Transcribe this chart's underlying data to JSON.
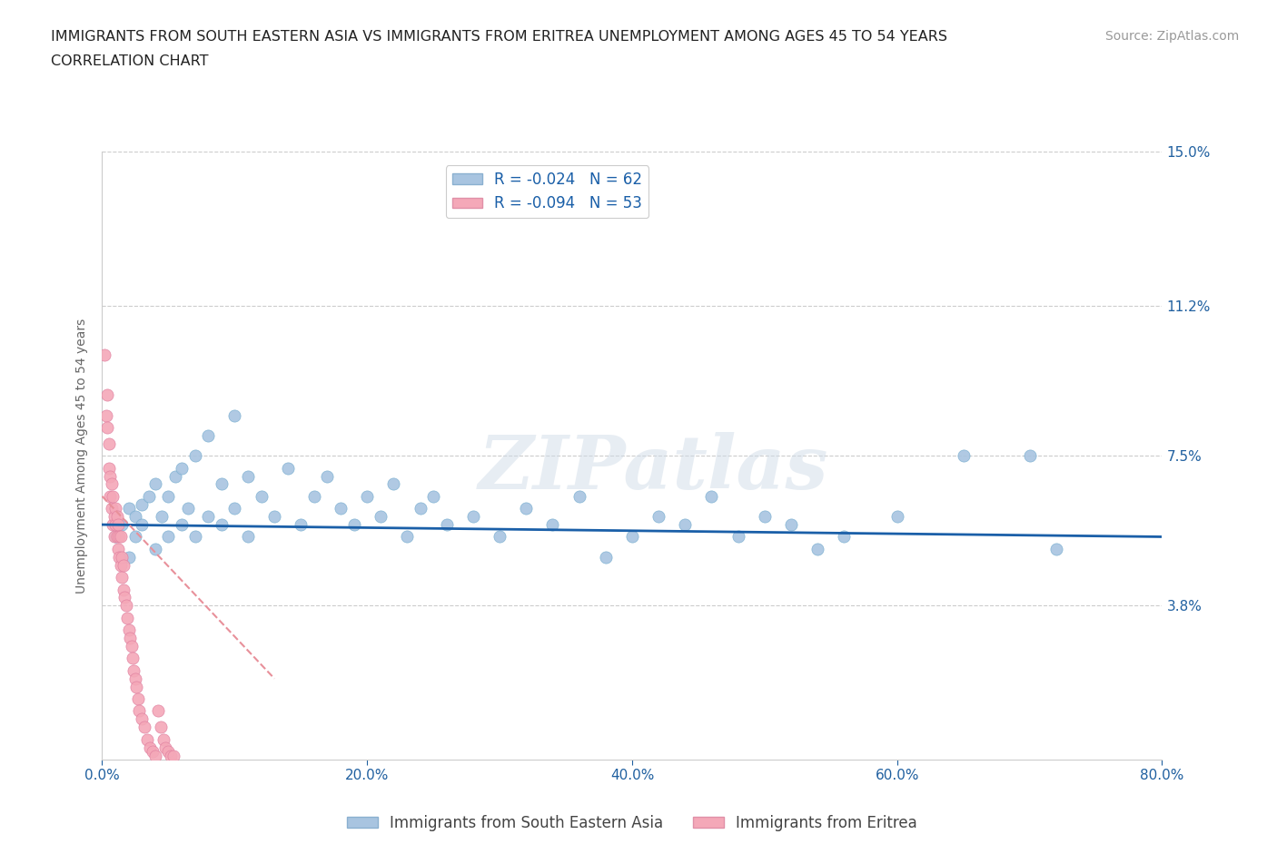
{
  "title_line1": "IMMIGRANTS FROM SOUTH EASTERN ASIA VS IMMIGRANTS FROM ERITREA UNEMPLOYMENT AMONG AGES 45 TO 54 YEARS",
  "title_line2": "CORRELATION CHART",
  "source": "Source: ZipAtlas.com",
  "ylabel": "Unemployment Among Ages 45 to 54 years",
  "xlim": [
    0.0,
    0.8
  ],
  "ylim": [
    0.0,
    0.15
  ],
  "xticks": [
    0.0,
    0.2,
    0.4,
    0.6,
    0.8
  ],
  "xticklabels": [
    "0.0%",
    "20.0%",
    "40.0%",
    "60.0%",
    "80.0%"
  ],
  "ytick_positions": [
    0.038,
    0.075,
    0.112,
    0.15
  ],
  "ytick_labels": [
    "3.8%",
    "7.5%",
    "11.2%",
    "15.0%"
  ],
  "grid_color": "#cccccc",
  "background_color": "#ffffff",
  "watermark": "ZIPatlas",
  "blue_label": "Immigrants from South Eastern Asia",
  "pink_label": "Immigrants from Eritrea",
  "blue_R": "-0.024",
  "blue_N": "62",
  "pink_R": "-0.094",
  "pink_N": "53",
  "blue_color": "#a8c4e0",
  "pink_color": "#f4a8b8",
  "blue_line_color": "#1a5fa8",
  "pink_line_color": "#e8909a",
  "blue_scatter_x": [
    0.01,
    0.015,
    0.02,
    0.02,
    0.025,
    0.025,
    0.03,
    0.03,
    0.035,
    0.04,
    0.04,
    0.045,
    0.05,
    0.05,
    0.055,
    0.06,
    0.06,
    0.065,
    0.07,
    0.07,
    0.08,
    0.08,
    0.09,
    0.09,
    0.1,
    0.1,
    0.11,
    0.11,
    0.12,
    0.13,
    0.14,
    0.15,
    0.16,
    0.17,
    0.18,
    0.19,
    0.2,
    0.21,
    0.22,
    0.23,
    0.24,
    0.25,
    0.26,
    0.28,
    0.3,
    0.32,
    0.34,
    0.36,
    0.38,
    0.4,
    0.42,
    0.44,
    0.46,
    0.48,
    0.5,
    0.52,
    0.54,
    0.56,
    0.6,
    0.65,
    0.7,
    0.72
  ],
  "blue_scatter_y": [
    0.055,
    0.058,
    0.05,
    0.062,
    0.06,
    0.055,
    0.063,
    0.058,
    0.065,
    0.052,
    0.068,
    0.06,
    0.055,
    0.065,
    0.07,
    0.058,
    0.072,
    0.062,
    0.055,
    0.075,
    0.08,
    0.06,
    0.068,
    0.058,
    0.085,
    0.062,
    0.07,
    0.055,
    0.065,
    0.06,
    0.072,
    0.058,
    0.065,
    0.07,
    0.062,
    0.058,
    0.065,
    0.06,
    0.068,
    0.055,
    0.062,
    0.065,
    0.058,
    0.06,
    0.055,
    0.062,
    0.058,
    0.065,
    0.05,
    0.055,
    0.06,
    0.058,
    0.065,
    0.055,
    0.06,
    0.058,
    0.052,
    0.055,
    0.06,
    0.075,
    0.075,
    0.052
  ],
  "pink_scatter_x": [
    0.002,
    0.003,
    0.004,
    0.004,
    0.005,
    0.005,
    0.006,
    0.006,
    0.007,
    0.007,
    0.008,
    0.008,
    0.009,
    0.009,
    0.01,
    0.01,
    0.011,
    0.011,
    0.012,
    0.012,
    0.013,
    0.013,
    0.014,
    0.014,
    0.015,
    0.015,
    0.016,
    0.016,
    0.017,
    0.018,
    0.019,
    0.02,
    0.021,
    0.022,
    0.023,
    0.024,
    0.025,
    0.026,
    0.027,
    0.028,
    0.03,
    0.032,
    0.034,
    0.036,
    0.038,
    0.04,
    0.042,
    0.044,
    0.046,
    0.048,
    0.05,
    0.052,
    0.054
  ],
  "pink_scatter_y": [
    0.1,
    0.085,
    0.082,
    0.09,
    0.078,
    0.072,
    0.065,
    0.07,
    0.068,
    0.062,
    0.058,
    0.065,
    0.06,
    0.055,
    0.062,
    0.058,
    0.055,
    0.06,
    0.052,
    0.058,
    0.055,
    0.05,
    0.048,
    0.055,
    0.05,
    0.045,
    0.048,
    0.042,
    0.04,
    0.038,
    0.035,
    0.032,
    0.03,
    0.028,
    0.025,
    0.022,
    0.02,
    0.018,
    0.015,
    0.012,
    0.01,
    0.008,
    0.005,
    0.003,
    0.002,
    0.001,
    0.012,
    0.008,
    0.005,
    0.003,
    0.002,
    0.001,
    0.001
  ],
  "title_fontsize": 11.5,
  "subtitle_fontsize": 11.5,
  "axis_label_fontsize": 10,
  "tick_fontsize": 11,
  "legend_fontsize": 12,
  "source_fontsize": 10
}
